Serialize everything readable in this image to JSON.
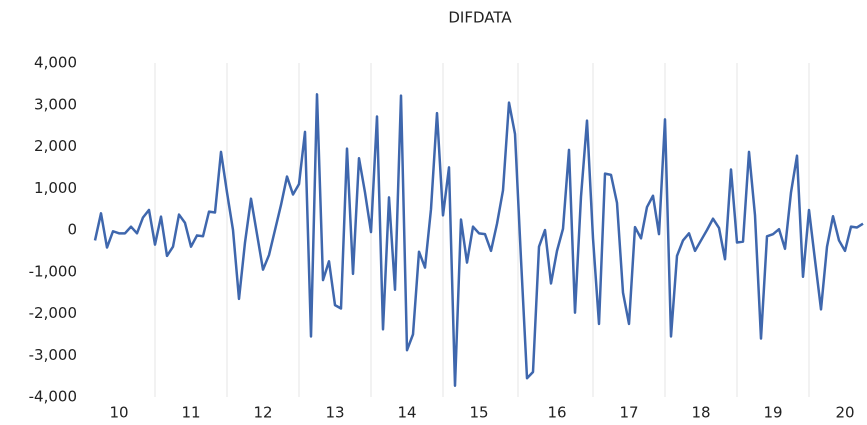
{
  "chart_data": {
    "type": "line",
    "title": "DIFDATA",
    "categories": [
      null,
      null,
      null,
      null,
      "10",
      null,
      null,
      null,
      null,
      null,
      null,
      null,
      null,
      null,
      null,
      null,
      "11",
      null,
      null,
      null,
      null,
      null,
      null,
      null,
      null,
      null,
      null,
      null,
      "12",
      null,
      null,
      null,
      null,
      null,
      null,
      null,
      null,
      null,
      null,
      null,
      "13",
      null,
      null,
      null,
      null,
      null,
      null,
      null,
      null,
      null,
      null,
      null,
      "14",
      null,
      null,
      null,
      null,
      null,
      null,
      null,
      null,
      null,
      null,
      null,
      "15",
      null,
      null,
      null,
      null,
      null,
      null,
      null,
      null,
      null,
      null,
      null,
      null,
      "16",
      null,
      null,
      null,
      null,
      null,
      null,
      null,
      null,
      null,
      null,
      null,
      "17",
      null,
      null,
      null,
      null,
      null,
      null,
      null,
      null,
      null,
      null,
      null,
      "18",
      null,
      null,
      null,
      null,
      null,
      null,
      null,
      null,
      null,
      null,
      null,
      "19",
      null,
      null,
      null,
      null,
      null,
      null,
      null,
      null,
      null,
      null,
      null,
      "20",
      null,
      null,
      null
    ],
    "series": [
      {
        "name": "DIFDATA",
        "color": "#3f67ad",
        "values": [
          -250,
          400,
          -420,
          -30,
          -80,
          -80,
          80,
          -80,
          300,
          480,
          -350,
          320,
          -620,
          -400,
          370,
          170,
          -400,
          -130,
          -150,
          440,
          420,
          1870,
          900,
          0,
          -1650,
          -300,
          750,
          -100,
          -950,
          -600,
          0,
          600,
          1280,
          850,
          1100,
          2350,
          -2550,
          3250,
          -1200,
          -750,
          -1800,
          -1880,
          1950,
          -1050,
          1720,
          900,
          -50,
          2720,
          -2380,
          780,
          -1430,
          3220,
          -2880,
          -2500,
          -520,
          -900,
          500,
          2800,
          350,
          1500,
          -3730,
          250,
          -780,
          80,
          -80,
          -100,
          -500,
          150,
          950,
          3050,
          2300,
          -700,
          -3550,
          -3400,
          -400,
          0,
          -1280,
          -500,
          30,
          1920,
          -1980,
          800,
          2620,
          -200,
          -2250,
          1350,
          1320,
          650,
          -1500,
          -2250,
          70,
          -200,
          550,
          820,
          -100,
          2650,
          -2550,
          -620,
          -250,
          -80,
          -500,
          -250,
          0,
          270,
          50,
          -700,
          1450,
          -300,
          -280,
          1870,
          350,
          -2600,
          -150,
          -100,
          20,
          -450,
          900,
          1780,
          -1120,
          480,
          -720,
          -1900,
          -400,
          330,
          -250,
          -500,
          80,
          60,
          150
        ]
      }
    ],
    "ylim": [
      -4000,
      4000
    ],
    "yticks": [
      {
        "value": -4000,
        "label": "-4,000"
      },
      {
        "value": -3000,
        "label": "-3,000"
      },
      {
        "value": -2000,
        "label": "-2,000"
      },
      {
        "value": -1000,
        "label": "-1,000"
      },
      0,
      {
        "value": 1000,
        "label": "1,000"
      },
      {
        "value": 2000,
        "label": "2,000"
      },
      {
        "value": 3000,
        "label": "3,000"
      },
      {
        "value": 4000,
        "label": "4,000"
      }
    ],
    "grid": "x"
  }
}
